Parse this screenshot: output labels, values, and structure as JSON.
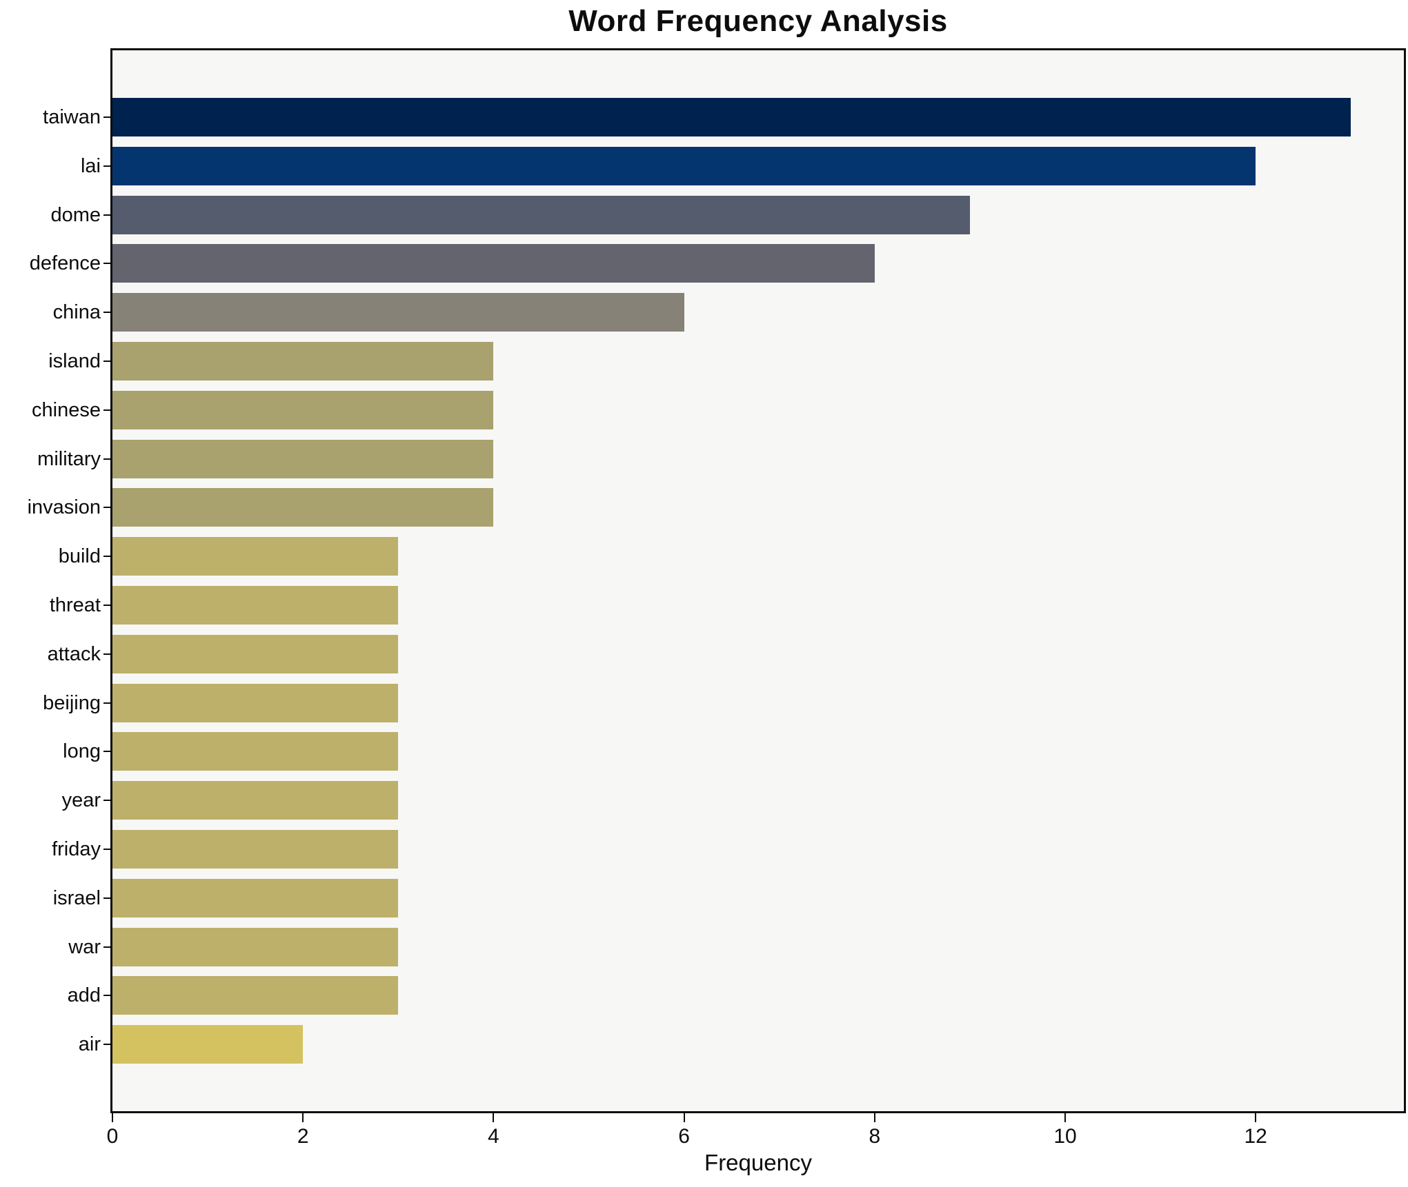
{
  "title": "Word Frequency Analysis",
  "xaxis": {
    "label": "Frequency",
    "ticks": [
      0,
      2,
      4,
      6,
      8,
      10,
      12
    ]
  },
  "chart_data": {
    "type": "bar",
    "orientation": "horizontal",
    "title": "Word Frequency Analysis",
    "xlabel": "Frequency",
    "ylabel": "",
    "xlim": [
      0,
      13.55
    ],
    "grid": false,
    "legend": "none",
    "plot_background": "#f7f7f6",
    "figure_background": "#ffffff",
    "categories": [
      "taiwan",
      "lai",
      "dome",
      "defence",
      "china",
      "island",
      "chinese",
      "military",
      "invasion",
      "build",
      "threat",
      "attack",
      "beijing",
      "long",
      "year",
      "friday",
      "israel",
      "war",
      "add",
      "air"
    ],
    "values": [
      13,
      12,
      9,
      8,
      6,
      4,
      4,
      4,
      4,
      3,
      3,
      3,
      3,
      3,
      3,
      3,
      3,
      3,
      3,
      2
    ],
    "bar_colors": [
      "#00224e",
      "#04356f",
      "#545c6d",
      "#64646f",
      "#868277",
      "#a9a16e",
      "#a9a16e",
      "#a9a16e",
      "#a9a16e",
      "#bdb06a",
      "#bdb06a",
      "#bdb06a",
      "#bdb06a",
      "#bdb06a",
      "#bdb06a",
      "#bdb06a",
      "#bdb06a",
      "#bdb06a",
      "#bdb06a",
      "#d3c25f"
    ]
  }
}
